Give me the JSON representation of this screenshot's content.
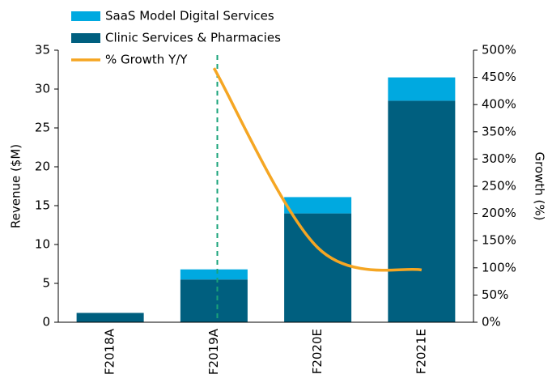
{
  "chart_data": {
    "type": "bar",
    "categories": [
      "F2018A",
      "F2019A",
      "F2020E",
      "F2021E"
    ],
    "series": [
      {
        "name": "Clinic Services & Pharmacies",
        "color": "#005f7f",
        "values": [
          1.2,
          5.5,
          14,
          28.5
        ]
      },
      {
        "name": "SaaS Model Digital Services",
        "color": "#00a9e0",
        "values": [
          0,
          1.3,
          2.1,
          3
        ]
      },
      {
        "name": "% Growth Y/Y",
        "color": "#f5a623",
        "type": "line",
        "axis": "y2",
        "values": [
          null,
          467,
          137,
          96
        ]
      }
    ],
    "ylabel": "Revenue ($M)",
    "y2label": "Growth (%)",
    "ylim": [
      0,
      35
    ],
    "yticks": [
      0,
      5,
      10,
      15,
      20,
      25,
      30,
      35
    ],
    "y2lim": [
      0,
      500
    ],
    "y2ticks": [
      {
        "value": 0,
        "label": "0%"
      },
      {
        "value": 50,
        "label": "50%"
      },
      {
        "value": 100,
        "label": "100%"
      },
      {
        "value": 150,
        "label": "150%"
      },
      {
        "value": 200,
        "label": "200%"
      },
      {
        "value": 250,
        "label": "250%"
      },
      {
        "value": 300,
        "label": "300%"
      },
      {
        "value": 350,
        "label": "350%"
      },
      {
        "value": 400,
        "label": "400%"
      },
      {
        "value": 450,
        "label": "450%"
      },
      {
        "value": 500,
        "label": "500%"
      }
    ],
    "legend": "top-left"
  }
}
